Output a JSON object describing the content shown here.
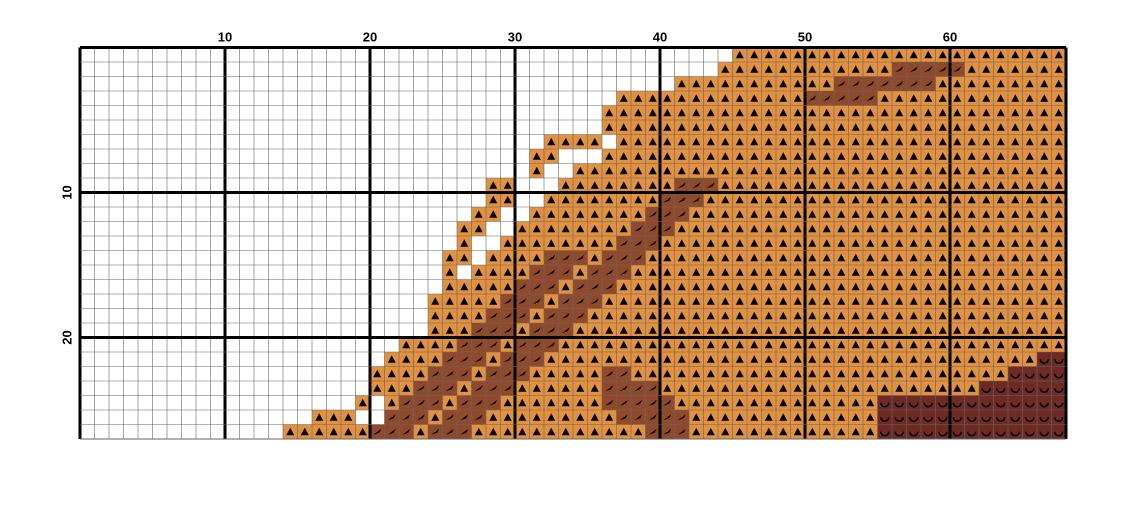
{
  "column_labels": [
    "10",
    "20",
    "30",
    "40",
    "50",
    "60"
  ],
  "row_labels": [
    "10",
    "20"
  ]
}
